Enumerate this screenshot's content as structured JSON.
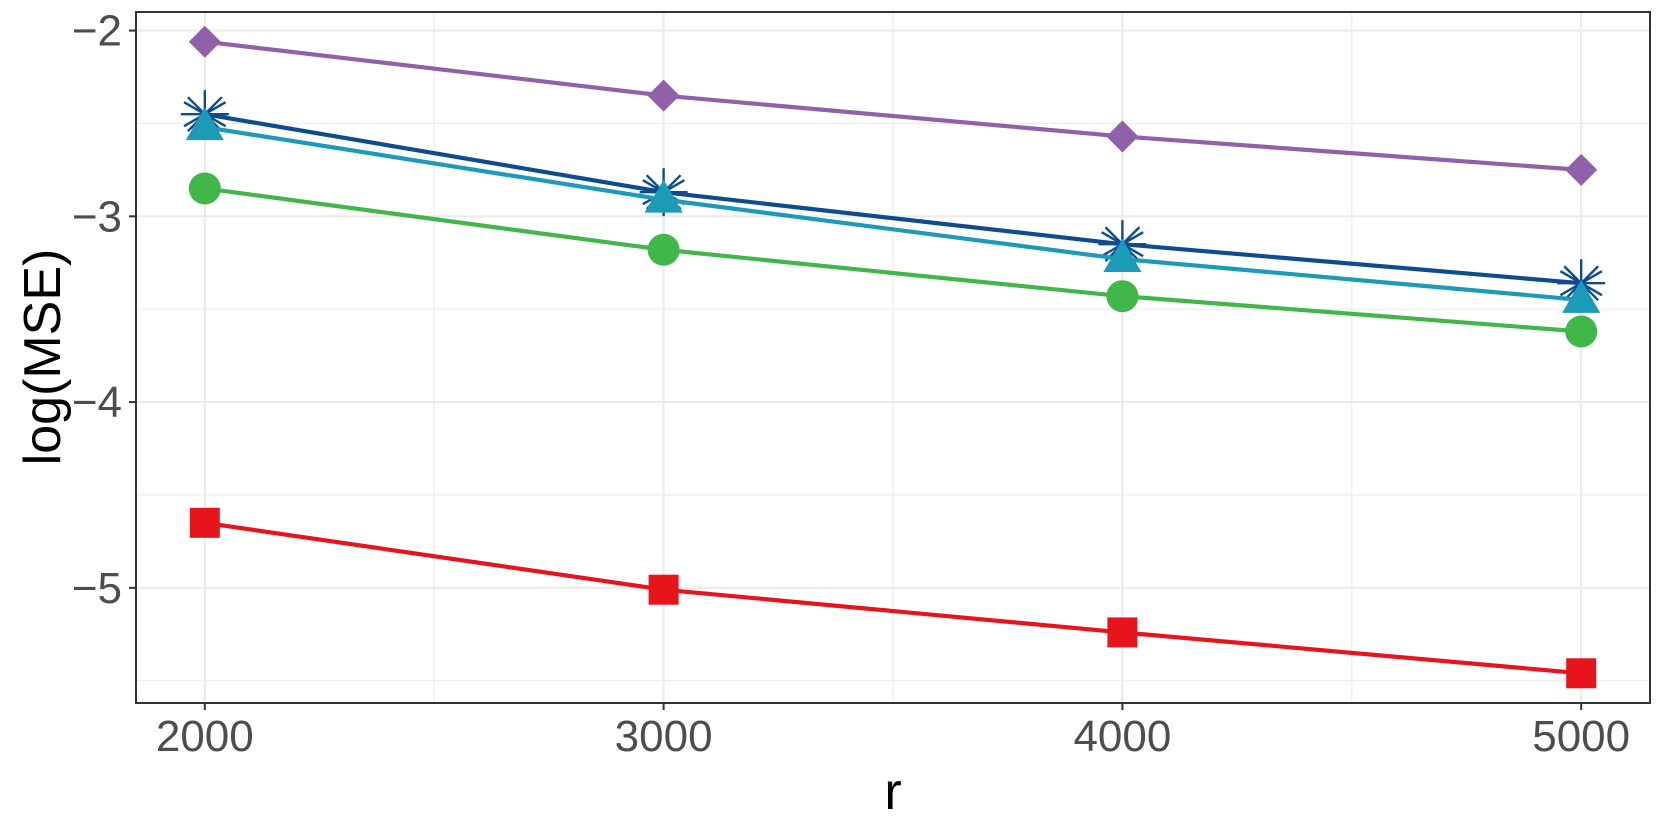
{
  "chart_data": {
    "type": "line",
    "title": "",
    "xlabel": "r",
    "ylabel": "log(MSE)",
    "x": [
      2000,
      3000,
      4000,
      5000
    ],
    "xticks": [
      "2000",
      "3000",
      "4000",
      "5000"
    ],
    "yticks": [
      "−2",
      "−3",
      "−4",
      "−5"
    ],
    "ytick_values": [
      -2,
      -3,
      -4,
      -5
    ],
    "xlim": [
      1850,
      5150
    ],
    "ylim": [
      -5.62,
      -1.9
    ],
    "grid": true,
    "legend": "none",
    "series": [
      {
        "marker": "diamond",
        "color": "#9060a8",
        "values": [
          -2.06,
          -2.35,
          -2.57,
          -2.75
        ]
      },
      {
        "marker": "asterisk",
        "color": "#0f4c8f",
        "values": [
          -2.45,
          -2.87,
          -3.15,
          -3.36
        ]
      },
      {
        "marker": "triangle",
        "color": "#1b9bb8",
        "values": [
          -2.52,
          -2.91,
          -3.23,
          -3.45
        ]
      },
      {
        "marker": "circle",
        "color": "#41b649",
        "values": [
          -2.85,
          -3.18,
          -3.43,
          -3.62
        ]
      },
      {
        "marker": "square",
        "color": "#e8141c",
        "values": [
          -4.65,
          -5.01,
          -5.24,
          -5.46
        ]
      }
    ]
  }
}
